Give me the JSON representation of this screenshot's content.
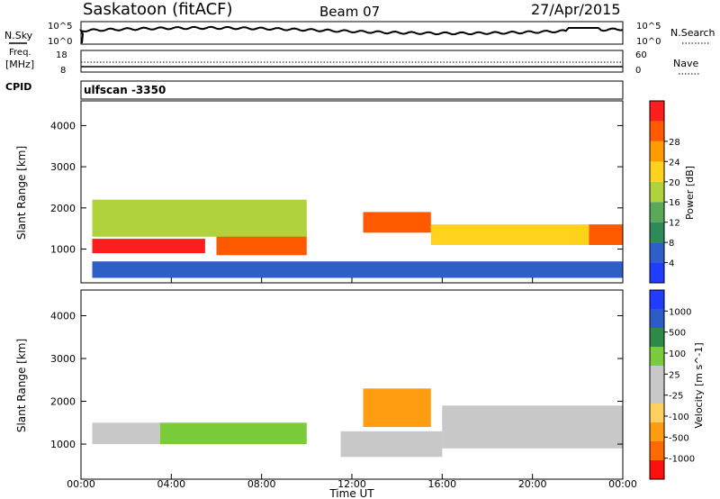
{
  "header": {
    "title": "Saskatoon (fitACF)",
    "beam": "Beam 07",
    "date": "27/Apr/2015"
  },
  "noise_panel": {
    "left_label": "N.Sky",
    "left_ticks": [
      "10^5",
      "10^0"
    ],
    "right_ticks": [
      "10^5",
      "10^0"
    ],
    "right_label": "N.Search"
  },
  "freq_panel": {
    "left_label_1": "Freq.",
    "left_label_2": "[MHz]",
    "left_ticks": [
      "18",
      "8"
    ],
    "right_ticks": [
      "60",
      "0"
    ],
    "right_label": "Nave"
  },
  "cpid_panel": {
    "label": "CPID",
    "value": "ulfscan -3350"
  },
  "colors": {
    "power": [
      "#1f3cff",
      "#2c60c8",
      "#2f8a5a",
      "#5aa85a",
      "#b0d23c",
      "#ffd21e",
      "#ff9a00",
      "#ff5a00",
      "#ff1e1e"
    ],
    "velocity": [
      "#ff1010",
      "#ff6a00",
      "#ff9c10",
      "#ffd060",
      "#c8c8c8",
      "#c8c8c8",
      "#7acc3a",
      "#2f8a4a",
      "#2c5ac8",
      "#1f3cff"
    ]
  },
  "chart_data": [
    {
      "type": "heatmap",
      "title": "Power",
      "xlabel": "",
      "ylabel": "Slant Range [km]",
      "x_ticks": [
        "00:00",
        "04:00",
        "08:00",
        "12:00",
        "16:00",
        "20:00",
        "00:00"
      ],
      "y_ticks": [
        1000,
        2000,
        3000,
        4000
      ],
      "ylim": [
        180,
        4600
      ],
      "colorbar": {
        "label": "Power [dB]",
        "ticks": [
          "4",
          "8",
          "12",
          "16",
          "20",
          "24",
          "28"
        ],
        "range": [
          0,
          30
        ]
      },
      "features": [
        {
          "x": [
            0.5,
            5.5
          ],
          "y": [
            900,
            1250
          ],
          "level": 28
        },
        {
          "x": [
            6.0,
            10.0
          ],
          "y": [
            850,
            1400
          ],
          "level": 26
        },
        {
          "x": [
            12.5,
            15.5
          ],
          "y": [
            1400,
            1900
          ],
          "level": 26
        },
        {
          "x": [
            15.5,
            22.5
          ],
          "y": [
            1100,
            1600
          ],
          "level": 18
        },
        {
          "x": [
            22.5,
            24.0
          ],
          "y": [
            1100,
            1600
          ],
          "level": 26
        },
        {
          "x": [
            0.5,
            10.0
          ],
          "y": [
            1300,
            2200
          ],
          "level": 14
        },
        {
          "x": [
            0.5,
            24.0
          ],
          "y": [
            300,
            700
          ],
          "level": 6
        }
      ]
    },
    {
      "type": "heatmap",
      "title": "Velocity",
      "xlabel": "Time UT",
      "ylabel": "Slant Range [km]",
      "x_ticks": [
        "00:00",
        "04:00",
        "08:00",
        "12:00",
        "16:00",
        "20:00",
        "00:00"
      ],
      "y_ticks": [
        1000,
        2000,
        3000,
        4000
      ],
      "ylim": [
        180,
        4600
      ],
      "colorbar": {
        "label": "Velocity [m s^-1]",
        "ticks": [
          "1000",
          "500",
          "100",
          "25",
          "-25",
          "-100",
          "-500",
          "-1000"
        ],
        "range": [
          -1000,
          1000
        ]
      },
      "features": [
        {
          "x": [
            0.5,
            3.5
          ],
          "y": [
            1000,
            1500
          ],
          "level": 0
        },
        {
          "x": [
            3.5,
            10.0
          ],
          "y": [
            1000,
            1500
          ],
          "level": 300
        },
        {
          "x": [
            12.5,
            15.5
          ],
          "y": [
            1400,
            2300
          ],
          "level": -500
        },
        {
          "x": [
            11.5,
            16.0
          ],
          "y": [
            700,
            1300
          ],
          "level": -150
        },
        {
          "x": [
            16.0,
            24.0
          ],
          "y": [
            900,
            1900
          ],
          "level": 0
        }
      ]
    }
  ]
}
